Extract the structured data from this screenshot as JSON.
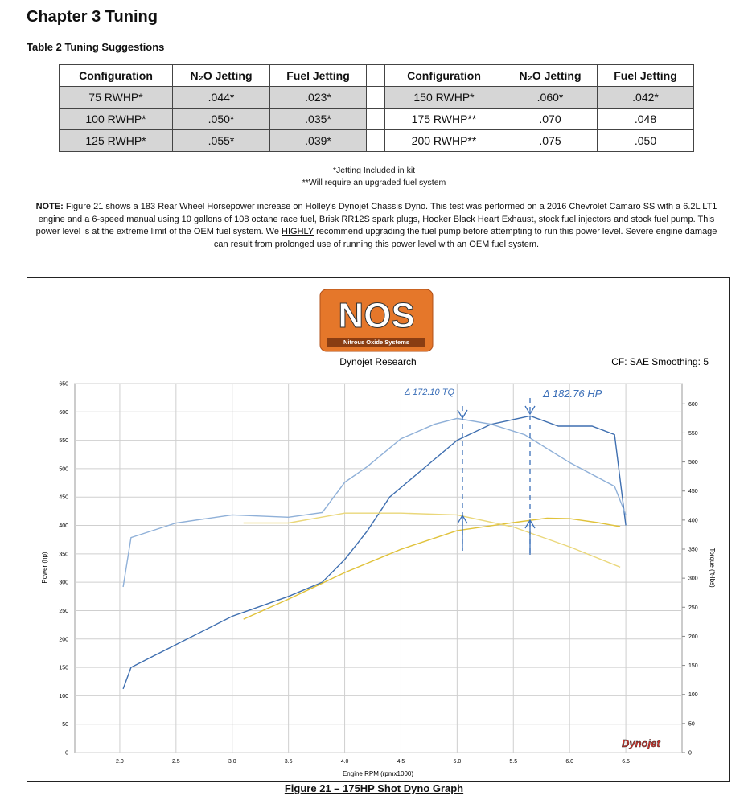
{
  "header": {
    "title": "Chapter 3 Tuning"
  },
  "table_caption": "Table 2 Tuning Suggestions",
  "tables": [
    {
      "headers": [
        "Configuration",
        "N₂O Jetting",
        "Fuel Jetting"
      ],
      "rows": [
        [
          "75 RWHP*",
          ".044*",
          ".023*"
        ],
        [
          "100 RWHP*",
          ".050*",
          ".035*"
        ],
        [
          "125 RWHP*",
          ".055*",
          ".039*"
        ]
      ]
    },
    {
      "headers": [
        "Configuration",
        "N₂O Jetting",
        "Fuel Jetting"
      ],
      "rows": [
        [
          "150 RWHP*",
          ".060*",
          ".042*"
        ],
        [
          "175 RWHP**",
          ".070",
          ".048"
        ],
        [
          "200 RWHP**",
          ".075",
          ".050"
        ]
      ]
    }
  ],
  "footnotes": [
    "*Jetting Included in kit",
    "**Will require an upgraded fuel system"
  ],
  "note": {
    "label": "NOTE:",
    "text_before": "Figure 21 shows a 183 Rear Wheel Horsepower increase on Holley's Dynojet Chassis Dyno. This test was performed on a 2016 Chevrolet Camaro SS with a 6.2L LT1 engine and a 6-speed manual using 10 gallons of 108 octane race fuel, Brisk RR12S spark plugs, Hooker Black Heart Exhaust, stock fuel injectors and stock fuel pump. This power level is at the extreme limit of the OEM fuel system. We",
    "emphasis": "HIGHLY",
    "text_after": "recommend upgrading the fuel pump before attempting to run this power level. Severe engine damage can result from prolonged use of running this power level with an OEM fuel system."
  },
  "figure": {
    "logo": "NOS",
    "logo_sub": "Nitrous Oxide Systems",
    "source": "Dynojet Research",
    "settings": "CF: SAE Smoothing: 5",
    "brand": "Dynojet",
    "caption": "Figure 21 – 175HP Shot Dyno Graph"
  },
  "chart_data": {
    "type": "line",
    "xlabel": "Engine RPM (rpmx1000)",
    "ylabel": "Power (hp)",
    "y2label": "Torque (ft-lbs)",
    "annotations": [
      "Δ 172.10 TQ",
      "Δ 182.76 HP"
    ],
    "xlim": [
      1.6,
      7.0
    ],
    "xticks": [
      {
        "value": 2,
        "label": "2.0"
      },
      2.5,
      {
        "value": 3,
        "label": "3.0"
      },
      3.5,
      {
        "value": 4,
        "label": "4.0"
      },
      4.5,
      {
        "value": 5,
        "label": "5.0"
      },
      5.5,
      {
        "value": 6,
        "label": "6.0"
      },
      6.5
    ],
    "ylim": [
      0,
      650
    ],
    "yticks": [
      0,
      50,
      100,
      150,
      200,
      250,
      300,
      350,
      400,
      450,
      500,
      550,
      600,
      650
    ],
    "y2lim": [
      0,
      635
    ],
    "y2ticks": [
      0,
      50,
      100,
      150,
      200,
      250,
      300,
      350,
      400,
      450,
      500,
      550,
      600
    ],
    "grid": true,
    "series": [
      {
        "color": "#3f6fb0",
        "x": [
          2.03,
          2.1,
          2.5,
          3.0,
          3.5,
          3.8,
          4.0,
          4.2,
          4.4,
          4.7,
          5.0,
          5.3,
          5.65,
          5.9,
          6.2,
          6.4,
          6.5
        ],
        "values": [
          112,
          150,
          190,
          240,
          275,
          300,
          340,
          390,
          450,
          500,
          550,
          578,
          593,
          575,
          575,
          560,
          400
        ]
      },
      {
        "color": "#8fb0d8",
        "axis": "y2",
        "x": [
          2.03,
          2.1,
          2.5,
          3.0,
          3.5,
          3.8,
          4.0,
          4.2,
          4.5,
          4.8,
          5.0,
          5.3,
          5.6,
          6.0,
          6.4,
          6.5
        ],
        "values": [
          285,
          370,
          395,
          409,
          405,
          413,
          465,
          492,
          540,
          565,
          575,
          565,
          547,
          499,
          458,
          409
        ]
      },
      {
        "color": "#e0c23a",
        "x": [
          3.1,
          3.5,
          4.0,
          4.5,
          5.0,
          5.5,
          5.8,
          6.0,
          6.25,
          6.45
        ],
        "values": [
          235,
          270,
          317,
          358,
          391,
          405,
          413,
          412,
          405,
          398
        ]
      },
      {
        "color": "#ead77a",
        "axis": "y2",
        "x": [
          3.1,
          3.5,
          4.0,
          4.5,
          5.0,
          5.5,
          6.0,
          6.45
        ],
        "values": [
          395,
          395,
          412,
          412,
          409,
          388,
          354,
          319
        ]
      }
    ]
  }
}
